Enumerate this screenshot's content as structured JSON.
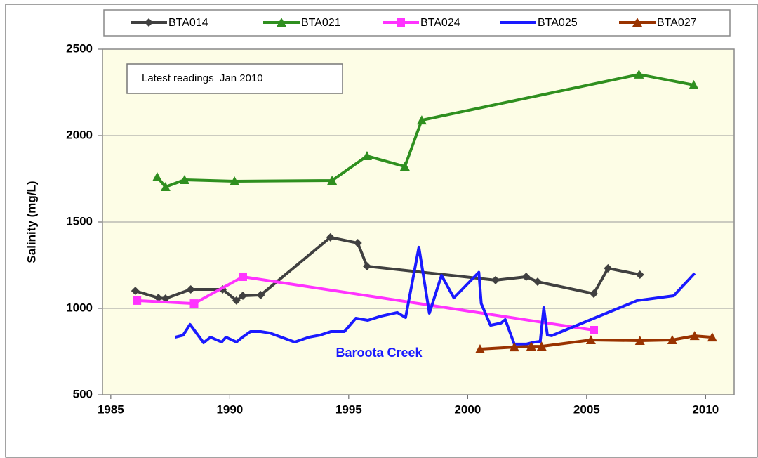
{
  "chart_data": {
    "type": "line",
    "y_label": "Salinity  (mg/L)",
    "xlim": [
      1984.65,
      2011.2
    ],
    "xticks": [
      1985,
      1990,
      1995,
      2000,
      2005,
      2010
    ],
    "ylim": [
      500,
      2500
    ],
    "yticks": [
      500,
      1000,
      1500,
      2000,
      2500
    ],
    "grid": true,
    "legend": "top",
    "annotations": [
      "Latest readings  Jan 2010",
      "Baroota Creek"
    ],
    "series": [
      {
        "name": "BTA014",
        "color": "#404040",
        "marker": "diamond",
        "x": [
          1986.03,
          1987.0,
          1987.3,
          1988.36,
          1989.7,
          1990.28,
          1990.55,
          1991.3,
          1994.23,
          1995.38,
          1995.77,
          2001.17,
          2002.46,
          2002.94,
          2005.3,
          2005.9,
          2007.24
        ],
        "values": [
          1101,
          1061,
          1057,
          1110,
          1110,
          1045,
          1073,
          1077,
          1411,
          1378,
          1244,
          1163,
          1183,
          1154,
          1085,
          1232,
          1195
        ]
      },
      {
        "name": "BTA021",
        "color": "#2f8f1f",
        "marker": "triangle",
        "x": [
          1986.95,
          1987.3,
          1988.1,
          1990.2,
          1994.3,
          1995.77,
          1997.36,
          1998.07,
          2007.2,
          2009.5
        ],
        "values": [
          1760,
          1703,
          1744,
          1736,
          1740,
          1882,
          1821,
          2089,
          2354,
          2293
        ]
      },
      {
        "name": "BTA024",
        "color": "#ff33ff",
        "marker": "square",
        "x": [
          1986.1,
          1988.5,
          1990.55,
          2005.3
        ],
        "values": [
          1045,
          1028,
          1183,
          874
        ]
      },
      {
        "name": "BTA025",
        "color": "#1a1aff",
        "marker": "none",
        "x": [
          1987.7,
          1988.04,
          1988.33,
          1988.9,
          1989.19,
          1989.66,
          1989.84,
          1990.28,
          1990.57,
          1990.87,
          1991.3,
          1991.67,
          1992.73,
          1993.32,
          1993.79,
          1994.26,
          1994.82,
          1995.3,
          1995.8,
          1996.36,
          1997.04,
          1997.39,
          1997.95,
          1998.39,
          1998.9,
          1999.42,
          2000.47,
          2000.57,
          2000.96,
          2001.4,
          2001.58,
          2001.96,
          2002.46,
          2002.82,
          2003.05,
          2003.2,
          2003.35,
          2003.53,
          2007.12,
          2008.66,
          2009.54
        ],
        "values": [
          833,
          845,
          907,
          801,
          833,
          805,
          833,
          805,
          837,
          866,
          866,
          858,
          805,
          833,
          845,
          866,
          866,
          943,
          931,
          955,
          976,
          947,
          1354,
          972,
          1191,
          1061,
          1209,
          1028,
          902,
          915,
          935,
          793,
          793,
          805,
          809,
          1004,
          846,
          842,
          1045,
          1073,
          1203
        ]
      },
      {
        "name": "BTA027",
        "color": "#993300",
        "marker": "triangle",
        "x": [
          2000.52,
          2001.96,
          2002.67,
          2003.11,
          2005.18,
          2007.24,
          2008.6,
          2009.54,
          2010.28
        ],
        "values": [
          764,
          776,
          780,
          780,
          817,
          813,
          817,
          841,
          833
        ]
      }
    ]
  }
}
